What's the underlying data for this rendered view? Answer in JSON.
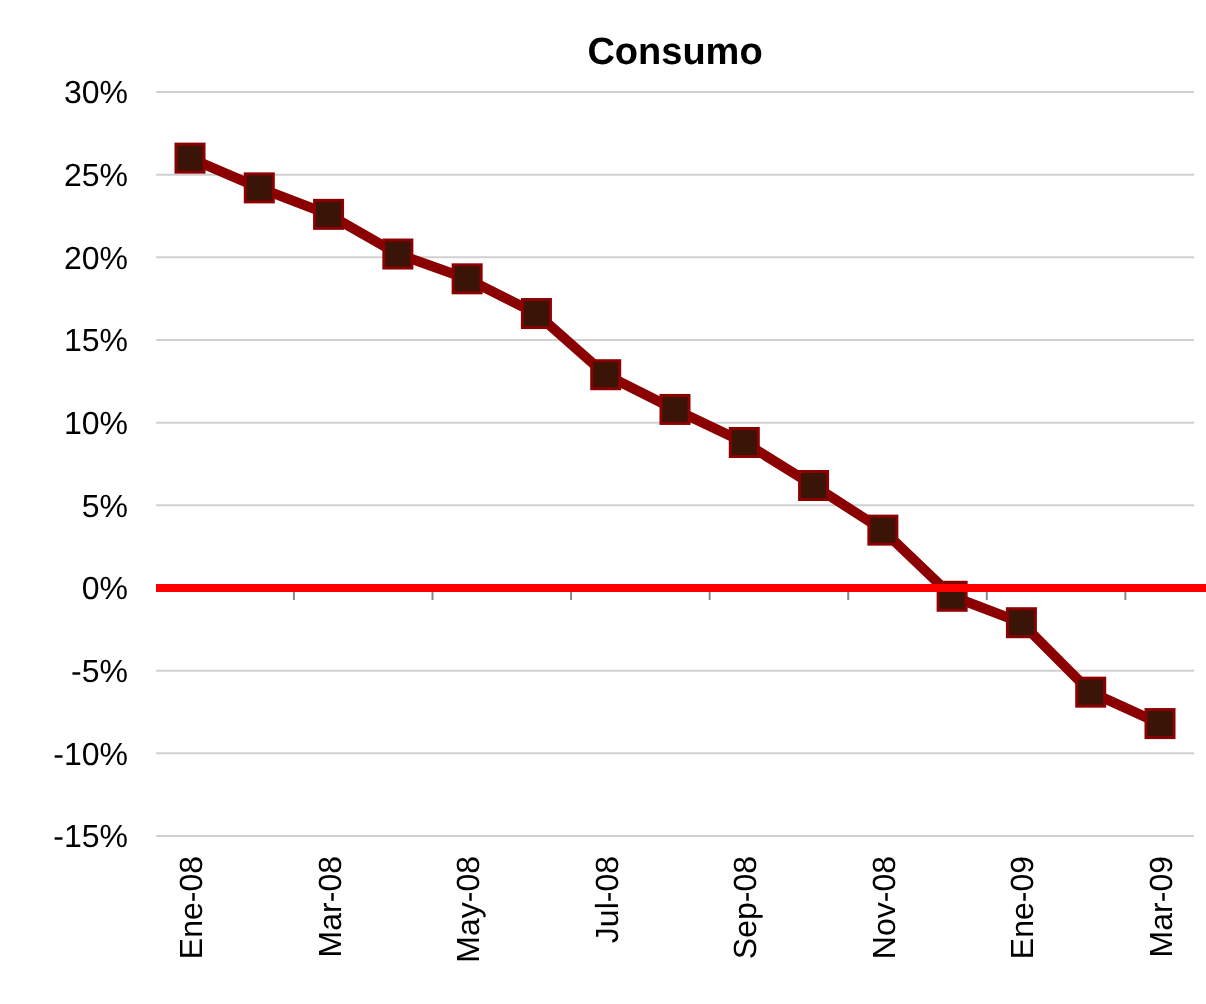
{
  "chart_data": {
    "type": "line",
    "title": "Consumo",
    "categories": [
      "Ene-08",
      null,
      "Mar-08",
      null,
      "May-08",
      null,
      "Jul-08",
      null,
      "Sep-08",
      null,
      "Nov-08",
      null,
      "Ene-09",
      null,
      "Mar-09"
    ],
    "series": [
      {
        "color": "#8b0000",
        "values": [
          26.0,
          24.2,
          22.6,
          20.2,
          18.7,
          16.6,
          12.9,
          10.8,
          8.8,
          6.2,
          3.5,
          -0.5,
          -2.1,
          -6.3,
          -8.2
        ]
      }
    ],
    "ylim": [
      -15,
      30
    ],
    "yticks": [
      {
        "value": -15,
        "label": "-15%"
      },
      {
        "value": -10,
        "label": "-10%"
      },
      {
        "value": -5,
        "label": "-5%"
      },
      {
        "value": 0,
        "label": "0%"
      },
      {
        "value": 5,
        "label": "5%"
      },
      {
        "value": 10,
        "label": "10%"
      },
      {
        "value": 15,
        "label": "15%"
      },
      {
        "value": 20,
        "label": "20%"
      },
      {
        "value": 25,
        "label": "25%"
      },
      {
        "value": 30,
        "label": "30%"
      }
    ],
    "grid": "y",
    "marker": "square",
    "line_style": "solid",
    "ref_lines": [
      {
        "axis": "y",
        "value": 0,
        "color": "#ff0000"
      }
    ]
  }
}
